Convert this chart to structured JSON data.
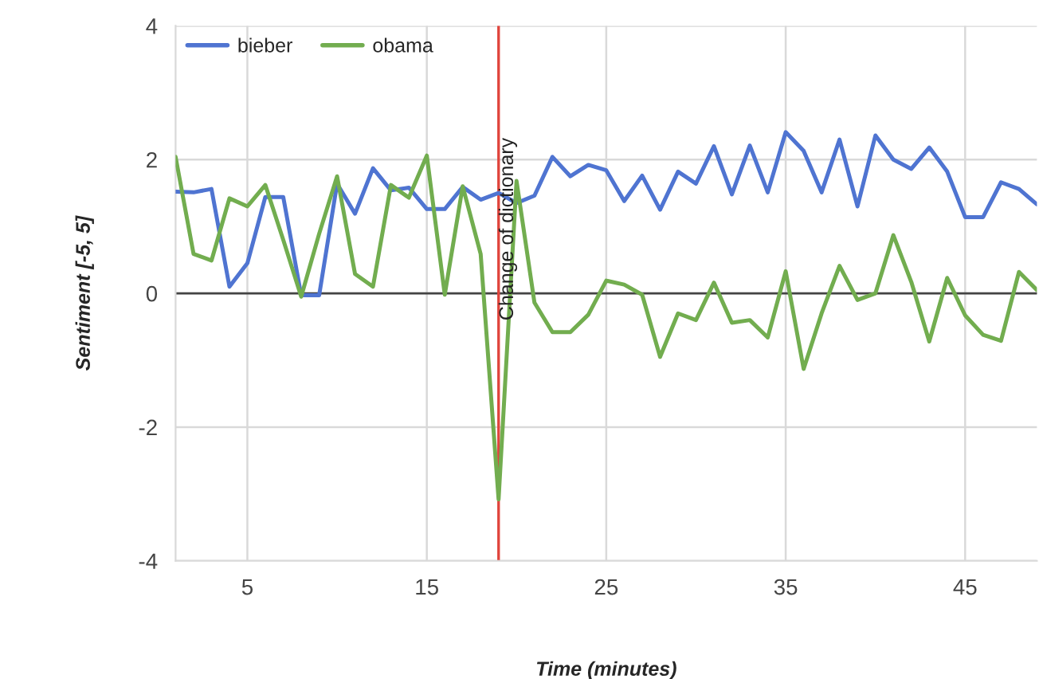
{
  "chart_data": {
    "type": "line",
    "xlabel": "Time (minutes)",
    "ylabel": "Sentiment [-5, 5]",
    "x": [
      1,
      2,
      3,
      4,
      5,
      6,
      7,
      8,
      9,
      10,
      11,
      12,
      13,
      14,
      15,
      16,
      17,
      18,
      19,
      20,
      21,
      22,
      23,
      24,
      25,
      26,
      27,
      28,
      29,
      30,
      31,
      32,
      33,
      34,
      35,
      36,
      37,
      38,
      39,
      40,
      41,
      42,
      43,
      44,
      45,
      46,
      47,
      48,
      49
    ],
    "series": [
      {
        "name": "bieber",
        "color": "#4f74d1",
        "values": [
          1.52,
          1.51,
          1.56,
          0.1,
          0.45,
          1.44,
          1.44,
          -0.03,
          -0.03,
          1.64,
          1.19,
          1.87,
          1.54,
          1.58,
          1.26,
          1.26,
          1.59,
          1.4,
          1.5,
          1.35,
          1.46,
          2.04,
          1.75,
          1.92,
          1.84,
          1.38,
          1.76,
          1.25,
          1.82,
          1.64,
          2.2,
          1.48,
          2.21,
          1.51,
          2.41,
          2.13,
          1.51,
          2.3,
          1.3,
          2.36,
          2.0,
          1.86,
          2.18,
          1.82,
          1.14,
          1.14,
          1.66,
          1.56,
          1.33
        ]
      },
      {
        "name": "obama",
        "color": "#72ad4f",
        "values": [
          2.04,
          0.59,
          0.49,
          1.42,
          1.3,
          1.62,
          0.8,
          -0.05,
          0.89,
          1.75,
          0.29,
          0.1,
          1.62,
          1.43,
          2.06,
          -0.02,
          1.6,
          0.59,
          -3.08,
          1.68,
          -0.14,
          -0.58,
          -0.58,
          -0.32,
          0.19,
          0.13,
          -0.02,
          -0.95,
          -0.3,
          -0.4,
          0.16,
          -0.44,
          -0.4,
          -0.66,
          0.33,
          -1.13,
          -0.3,
          0.41,
          -0.1,
          0.0,
          0.87,
          0.17,
          -0.72,
          0.23,
          -0.33,
          -0.62,
          -0.71,
          0.32,
          0.05
        ]
      }
    ],
    "xlim": [
      1,
      49
    ],
    "xticks": [
      5,
      15,
      25,
      35,
      45
    ],
    "ylim": [
      -4,
      4
    ],
    "yticks": [
      -4,
      -2,
      0,
      2,
      4
    ],
    "ref_lines": [
      {
        "axis": "y",
        "value": 0,
        "color": "#444444"
      },
      {
        "axis": "x",
        "value": 19,
        "label": "Change of dictionary",
        "color": "#e0443c"
      }
    ],
    "grid": true,
    "legend": "top left",
    "line_style": "solid",
    "marker": "none"
  }
}
